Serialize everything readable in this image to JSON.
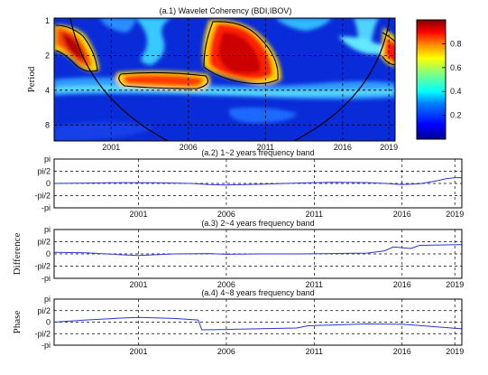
{
  "colors": {
    "series": "#2a35d8",
    "contour": "#000000",
    "grid": "#000000",
    "colorbar": [
      "#00008f",
      "#0000ff",
      "#0080ff",
      "#00ffff",
      "#80ff80",
      "#ffff00",
      "#ff8000",
      "#ff0000",
      "#800000"
    ]
  },
  "chart_data": [
    {
      "type": "heatmap",
      "title": "(a.1)  Wavelet Coherency (BDI,IBOV)",
      "ylabel": "Period",
      "x_ticks": [
        2001,
        2006,
        2011,
        2016,
        2019
      ],
      "xlim": [
        1997.3,
        2019.4
      ],
      "y_ticks": [
        1,
        2,
        4,
        8
      ],
      "y_scale": "log2",
      "ylim": [
        0.95,
        11
      ],
      "colorbar": {
        "ticks": [
          0.2,
          0.4,
          0.6,
          0.8
        ],
        "range": [
          0,
          1
        ]
      },
      "grid": true
    },
    {
      "type": "line",
      "title": "(a.2)  1~2 years frequency band",
      "ylabel": "",
      "x_ticks": [
        2001,
        2006,
        2011,
        2016,
        2019
      ],
      "xlim": [
        1996.2,
        2019.4
      ],
      "y_ticks": [
        "pi",
        "pi/2",
        "0",
        "-pi/2",
        "-pi"
      ],
      "ylim": [
        -3.1416,
        3.1416
      ],
      "grid": true,
      "series": [
        {
          "x": [
            1996.2,
            1998,
            2000,
            2002,
            2004,
            2005,
            2006,
            2008,
            2010,
            2012,
            2014,
            2015,
            2016,
            2017,
            2018,
            2018.5,
            2019,
            2019.4
          ],
          "y": [
            0.0,
            0.05,
            0.1,
            0.08,
            0.0,
            -0.15,
            -0.2,
            -0.1,
            0.05,
            0.15,
            0.1,
            0.0,
            -0.15,
            -0.05,
            0.35,
            0.6,
            0.75,
            0.75
          ]
        }
      ]
    },
    {
      "type": "line",
      "title": "(a.3)  2~4 years frequency band",
      "ylabel": "Difference",
      "x_ticks": [
        2001,
        2006,
        2011,
        2016,
        2019
      ],
      "xlim": [
        1996.2,
        2019.4
      ],
      "y_ticks": [
        "pi",
        "pi/2",
        "0",
        "-pi/2",
        "-pi"
      ],
      "ylim": [
        -3.1416,
        3.1416
      ],
      "grid": true,
      "series": [
        {
          "x": [
            1996.2,
            1998,
            2000,
            2001,
            2003,
            2005,
            2006,
            2008,
            2010,
            2012,
            2014,
            2015,
            2015.5,
            2016,
            2016.5,
            2017,
            2019.4
          ],
          "y": [
            0.2,
            0.15,
            -0.1,
            -0.2,
            0.0,
            0.05,
            -0.05,
            0.0,
            0.0,
            0.05,
            0.1,
            0.4,
            0.9,
            0.8,
            0.7,
            1.1,
            1.2
          ]
        }
      ]
    },
    {
      "type": "line",
      "title": "(a.4)  4~8 years frequency band",
      "ylabel": "Phase",
      "x_ticks": [
        2001,
        2006,
        2011,
        2016,
        2019
      ],
      "xlim": [
        1996.2,
        2019.4
      ],
      "y_ticks": [
        "pi",
        "pi/2",
        "0",
        "-pi/2",
        "-pi"
      ],
      "ylim": [
        -3.1416,
        3.1416
      ],
      "grid": true,
      "series": [
        {
          "x": [
            1996.2,
            1998,
            2000,
            2001,
            2003,
            2004.4,
            2004.6,
            2006,
            2008,
            2010,
            2010.6,
            2011,
            2012,
            2014,
            2016,
            2017,
            2019.4
          ],
          "y": [
            0.0,
            0.3,
            0.55,
            0.65,
            0.5,
            0.3,
            -1.05,
            -1.0,
            -0.9,
            -0.8,
            -0.5,
            -0.45,
            -0.4,
            -0.25,
            -0.3,
            -0.45,
            -0.9
          ]
        }
      ]
    }
  ]
}
